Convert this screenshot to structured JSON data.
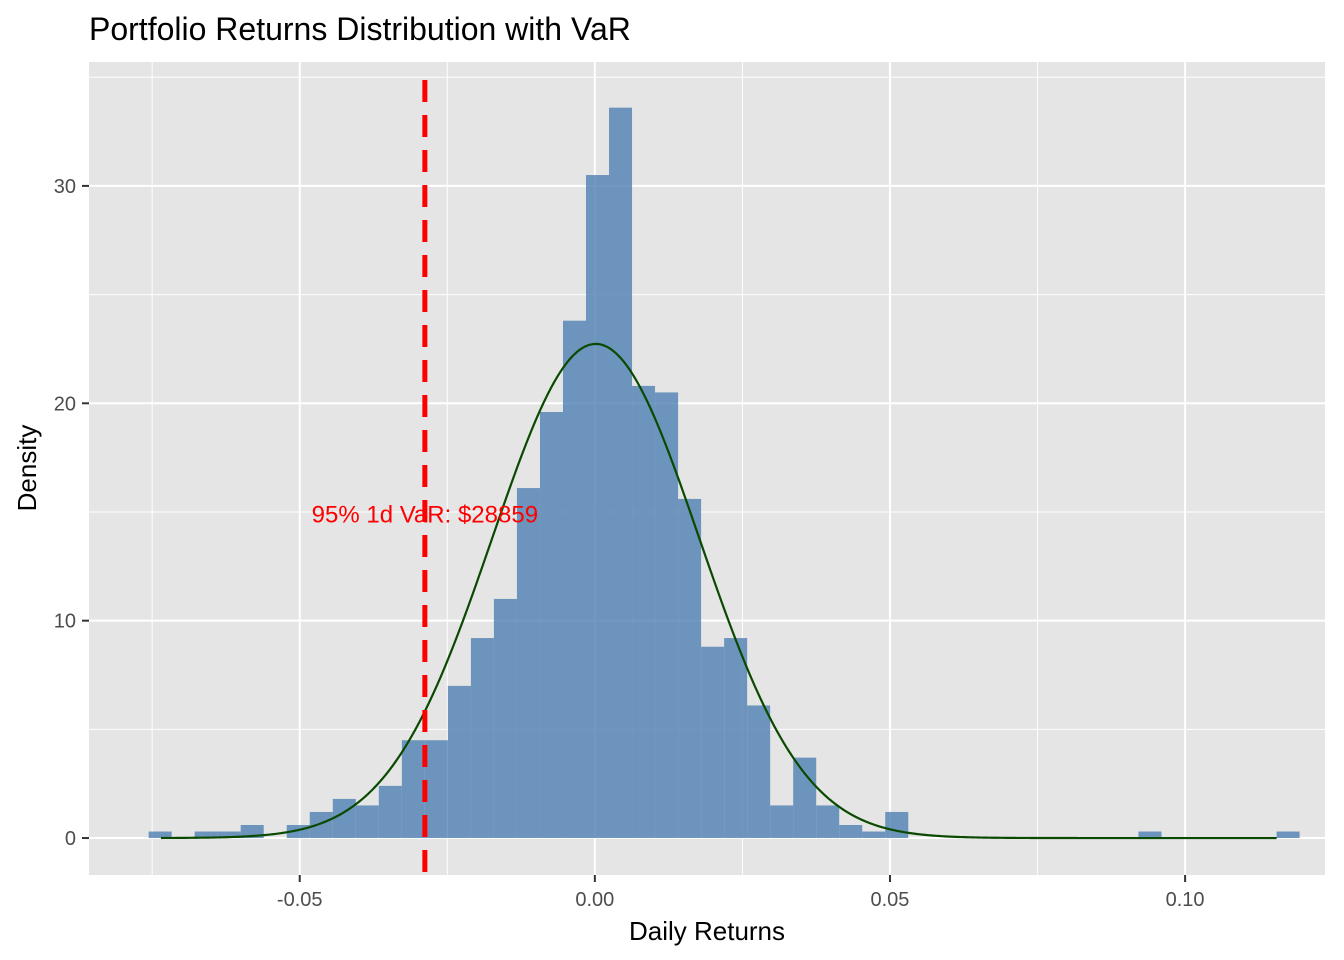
{
  "chart_data": {
    "type": "bar",
    "title": "Portfolio Returns Distribution with VaR",
    "xlabel": "Daily Returns",
    "ylabel": "Density",
    "xlim": [
      -0.0857,
      0.1237
    ],
    "ylim": [
      -1.7,
      35.7
    ],
    "x_ticks": [
      -0.05,
      0.0,
      0.05,
      0.1
    ],
    "x_tick_labels": [
      "-0.05",
      "0.00",
      "0.05",
      "0.10"
    ],
    "y_ticks": [
      0,
      10,
      20,
      30
    ],
    "y_tick_labels": [
      "0",
      "10",
      "20",
      "30"
    ],
    "grid": true,
    "bin_width": 0.0039,
    "bin_starts": [
      -0.0756,
      -0.0678,
      -0.0639,
      -0.06,
      -0.0522,
      -0.0483,
      -0.0444,
      -0.0405,
      -0.0366,
      -0.0327,
      -0.0288,
      -0.0249,
      -0.021,
      -0.0171,
      -0.0132,
      -0.0093,
      -0.0054,
      -0.0015,
      0.0024,
      0.0063,
      0.0102,
      0.0141,
      0.018,
      0.0219,
      0.0258,
      0.0297,
      0.0336,
      0.0375,
      0.0414,
      0.0453,
      0.0492,
      0.0921,
      0.1155
    ],
    "density": [
      0.3,
      0.3,
      0.3,
      0.6,
      0.6,
      1.2,
      1.8,
      1.5,
      2.4,
      4.5,
      4.5,
      7.0,
      9.2,
      11.0,
      16.1,
      19.6,
      23.8,
      30.5,
      33.6,
      20.8,
      20.5,
      15.6,
      8.8,
      9.2,
      6.1,
      1.5,
      3.7,
      1.5,
      0.6,
      0.3,
      1.2,
      0.3,
      0.3
    ],
    "normal_fit": {
      "mean": 0.00015,
      "sd": 0.01755,
      "x_range": [
        -0.0735,
        0.1155
      ]
    },
    "var_line": {
      "x": -0.0288,
      "label": "95% 1d VaR: $28859",
      "label_y": 14.8
    },
    "colors": {
      "bars": "#4f7fb1",
      "curve": "#0a4a00",
      "var_line": "#ff0000",
      "panel": "#e5e5e5",
      "grid": "#ffffff"
    }
  }
}
